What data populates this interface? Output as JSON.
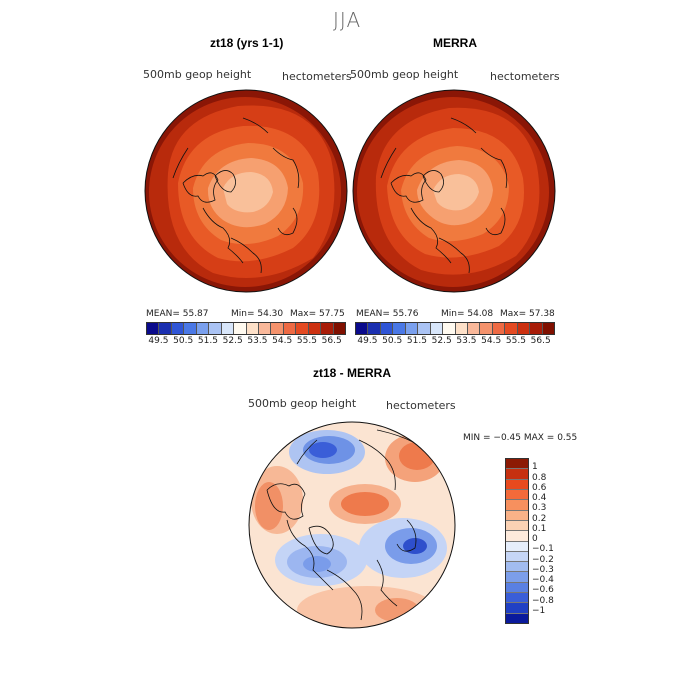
{
  "title": "JJA",
  "panels": [
    {
      "title": "zt18 (yrs 1-1)",
      "variable": "500mb  geop  height",
      "units": "hectometers",
      "stats": {
        "mean": "MEAN=   55.87",
        "min": "Min=   54.30",
        "max": "Max=   57.75"
      }
    },
    {
      "title": "MERRA",
      "variable": "500mb  geop  height",
      "units": "hectometers",
      "stats": {
        "mean": "MEAN=   55.76",
        "min": "Min=   54.08",
        "max": "Max=   57.38"
      }
    }
  ],
  "diff_panel": {
    "title": "zt18 - MERRA",
    "variable": "500mb  geop  height",
    "units": "hectometers",
    "minmax": "MIN =   −0.45  MAX =     0.55"
  },
  "colorbar_abs": {
    "labels": [
      "49.5",
      "50.5",
      "51.5",
      "52.5",
      "53.5",
      "54.5",
      "55.5",
      "56.5"
    ],
    "colors": [
      "#0a0a8c",
      "#1a2fb0",
      "#2f55d6",
      "#4a78e6",
      "#7aa0ee",
      "#aac3f4",
      "#d8e6fa",
      "#fffaf0",
      "#fde0c8",
      "#f9b89a",
      "#f4926c",
      "#ee6a44",
      "#e44a22",
      "#cc3010",
      "#a81c08",
      "#801000"
    ]
  },
  "colorbar_diff": {
    "labels": [
      "1",
      "0.8",
      "0.6",
      "0.4",
      "0.3",
      "0.2",
      "0.1",
      "0",
      "−0.1",
      "−0.2",
      "−0.3",
      "−0.4",
      "−0.6",
      "−0.8",
      "−1"
    ],
    "colors": [
      "#8c1a04",
      "#c63010",
      "#e84a1e",
      "#f36a3a",
      "#f7905e",
      "#f9b288",
      "#fbd2b4",
      "#fdeadc",
      "#e6eefb",
      "#c6d6f6",
      "#a2bcf0",
      "#7c9eea",
      "#5a80e2",
      "#3a5ed8",
      "#2040c4",
      "#0a1a9c"
    ]
  },
  "map_colors": {
    "rim": "#8a1606",
    "band1": "#b82a0c",
    "band2": "#d63e16",
    "band3": "#e85a26",
    "band4": "#f07a3e",
    "band5": "#f6a070",
    "core": "#f9c09a",
    "diff_base": "#fbe4d2"
  }
}
